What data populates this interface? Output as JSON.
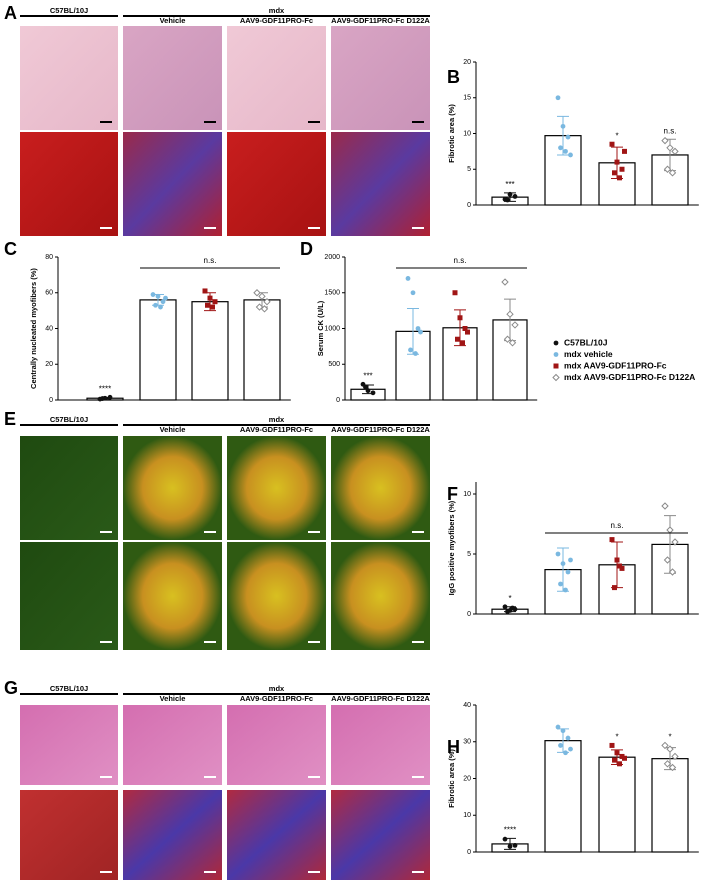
{
  "image_panels": [
    {
      "letter": "A",
      "strains": [
        "C57BL/10J",
        "mdx"
      ],
      "groups": [
        "Vehicle",
        "AAV9-GDF11PRO-Fc",
        "AAV9-GDF11PRO-Fc D122A"
      ]
    },
    {
      "letter": "E",
      "strains": [
        "C57BL/10J",
        "mdx"
      ],
      "groups": [
        "Vehicle",
        "AAV9-GDF11PRO-Fc",
        "AAV9-GDF11PRO-Fc D122A"
      ]
    },
    {
      "letter": "G",
      "strains": [
        "C57BL/10J",
        "mdx"
      ],
      "groups": [
        "Vehicle",
        "AAV9-GDF11PRO-Fc",
        "AAV9-GDF11PRO-Fc D122A"
      ]
    }
  ],
  "legend": [
    {
      "name": "C57BL/10J",
      "color": "#111111",
      "marker": "circle"
    },
    {
      "name": "mdx vehicle",
      "color": "#7ab8e0",
      "marker": "circle"
    },
    {
      "name": "mdx AAV9-GDF11PRO-Fc",
      "color": "#a01515",
      "marker": "square"
    },
    {
      "name": "mdx AAV9-GDF11PRO-Fc D122A",
      "color": "#8a8a8a",
      "marker": "diamond"
    }
  ],
  "chart_data": [
    {
      "type": "bar",
      "letter": "B",
      "y_label": "Fibrotic area (%)",
      "ylim": [
        0,
        20
      ],
      "yticks": [
        0,
        5,
        10,
        15,
        20
      ],
      "values": [
        1.1,
        9.7,
        5.9,
        7.0
      ],
      "errors": [
        0.6,
        2.7,
        2.2,
        2.2
      ],
      "points": [
        [
          0.8,
          1.5,
          1.2,
          0.7
        ],
        [
          15,
          11,
          9.5,
          8,
          7.5,
          7
        ],
        [
          8.5,
          6,
          5,
          4.5,
          3.8,
          7.5
        ],
        [
          9,
          8,
          7.5,
          5,
          4.5
        ]
      ],
      "annotations": [
        "***",
        null,
        "*",
        "n.s."
      ]
    },
    {
      "type": "bar",
      "letter": "C",
      "y_label": "Centrally nucleated myofibers (%)",
      "ylim": [
        0,
        80
      ],
      "yticks": [
        0,
        20,
        40,
        60,
        80
      ],
      "values": [
        1,
        56,
        55,
        56
      ],
      "errors": [
        0.4,
        3,
        5,
        4
      ],
      "points": [
        [
          0.5,
          1,
          1.5,
          0.8
        ],
        [
          59,
          58,
          55,
          53,
          52,
          57
        ],
        [
          61,
          57,
          55,
          53,
          52
        ],
        [
          60,
          58,
          55,
          52,
          51
        ]
      ],
      "annotations": [
        "****",
        null,
        null,
        null
      ],
      "bracket_label": "n.s."
    },
    {
      "type": "bar",
      "letter": "D",
      "y_label": "Serum CK (U/L)",
      "ylim": [
        0,
        2000
      ],
      "yticks": [
        0,
        500,
        1000,
        1500,
        2000
      ],
      "values": [
        150,
        960,
        1010,
        1120
      ],
      "errors": [
        60,
        320,
        250,
        290
      ],
      "points": [
        [
          220,
          130,
          100,
          180
        ],
        [
          1700,
          1500,
          1000,
          700,
          650,
          950
        ],
        [
          1500,
          1150,
          1000,
          850,
          800,
          950
        ],
        [
          1650,
          1200,
          1050,
          850,
          800
        ]
      ],
      "annotations": [
        "***",
        null,
        null,
        null
      ],
      "bracket_label": "n.s."
    },
    {
      "type": "bar",
      "letter": "F",
      "y_label": "IgG positive myofibers (%)",
      "ylim": [
        0,
        11
      ],
      "yticks": [
        0,
        5,
        10
      ],
      "values": [
        0.4,
        3.7,
        4.1,
        5.8
      ],
      "errors": [
        0.2,
        1.8,
        1.9,
        2.4
      ],
      "points": [
        [
          0.6,
          0.3,
          0.4,
          0.2,
          0.5
        ],
        [
          5,
          4.2,
          3.5,
          2.5,
          2,
          4.5
        ],
        [
          6.2,
          4.5,
          3.8,
          2.2,
          4
        ],
        [
          9,
          7,
          6,
          4.5,
          3.5
        ]
      ],
      "annotations": [
        "*",
        null,
        null,
        null
      ],
      "bracket_label": "n.s."
    },
    {
      "type": "bar",
      "letter": "H",
      "y_label": "Fibrotic area (%)",
      "ylim": [
        0,
        40
      ],
      "yticks": [
        0,
        10,
        20,
        30,
        40
      ],
      "values": [
        2.2,
        30.3,
        25.8,
        25.4
      ],
      "errors": [
        1.5,
        3.2,
        2,
        3
      ],
      "points": [
        [
          3.5,
          1.5,
          1.8
        ],
        [
          34,
          33,
          31,
          29,
          27,
          28
        ],
        [
          29,
          27,
          26,
          25,
          24,
          25.5
        ],
        [
          29,
          28,
          26,
          24,
          23
        ]
      ],
      "annotations": [
        "****",
        null,
        "*",
        "*"
      ]
    }
  ]
}
